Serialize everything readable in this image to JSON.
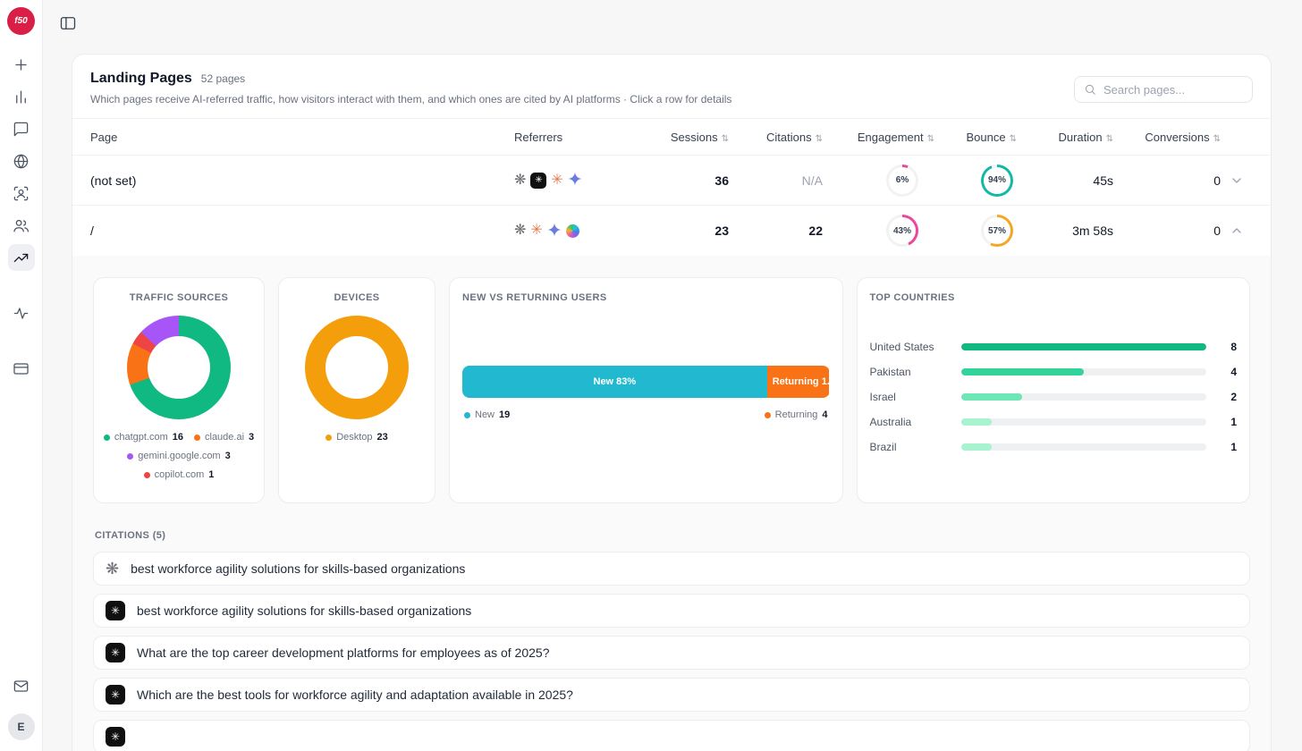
{
  "sidebar": {
    "logo_text": "f50",
    "avatar_text": "E"
  },
  "header": {
    "title": "Landing Pages",
    "badge": "52 pages",
    "subtitle": "Which pages receive AI-referred traffic, how visitors interact with them, and which ones are cited by AI platforms · Click a row for details",
    "search_placeholder": "Search pages..."
  },
  "table": {
    "columns": [
      "Page",
      "Referrers",
      "Sessions",
      "Citations",
      "Engagement",
      "Bounce",
      "Duration",
      "Conversions"
    ],
    "rows": [
      {
        "page": "(not set)",
        "referrers": [
          "openai",
          "chatgpt",
          "claude",
          "gemini"
        ],
        "sessions": "36",
        "citations": "N/A",
        "engagement": {
          "label": "6%",
          "pct": 6,
          "color": "#ec4899"
        },
        "bounce": {
          "label": "94%",
          "pct": 94,
          "color": "#14b8a6"
        },
        "duration": "45s",
        "conversions": "0"
      },
      {
        "page": "/",
        "referrers": [
          "openai",
          "claude",
          "gemini",
          "copilot"
        ],
        "sessions": "23",
        "citations": "22",
        "engagement": {
          "label": "43%",
          "pct": 43,
          "color": "#ec4899"
        },
        "bounce": {
          "label": "57%",
          "pct": 57,
          "color": "#f5a623"
        },
        "duration": "3m 58s",
        "conversions": "0"
      }
    ]
  },
  "expanded": {
    "traffic_sources": {
      "title": "TRAFFIC SOURCES",
      "chart": {
        "type": "pie",
        "slices": [
          {
            "label": "chatgpt.com",
            "value": 16,
            "color": "#10b981"
          },
          {
            "label": "claude.ai",
            "value": 3,
            "color": "#f97316"
          },
          {
            "label": "copilot.com",
            "value": 1,
            "color": "#ef4444"
          },
          {
            "label": "gemini.google.com",
            "value": 3,
            "color": "#a855f7"
          }
        ]
      }
    },
    "devices": {
      "title": "DEVICES",
      "chart": {
        "type": "pie",
        "slices": [
          {
            "label": "Desktop",
            "value": 23,
            "color": "#f59e0b"
          }
        ]
      }
    },
    "new_vs_returning": {
      "title": "NEW VS RETURNING USERS",
      "bar": {
        "type": "stacked-bar",
        "new_label": "New 83%",
        "returning_label": "Returning 1...",
        "new_pct": 83,
        "returning_pct": 17,
        "new_color": "#22b8cf",
        "returning_color": "#f97316"
      },
      "legend": [
        {
          "label": "New",
          "value": "19",
          "color": "#22b8cf"
        },
        {
          "label": "Returning",
          "value": "4",
          "color": "#f97316"
        }
      ]
    },
    "top_countries": {
      "title": "TOP COUNTRIES",
      "chart": {
        "type": "bar",
        "items": [
          {
            "label": "United States",
            "value": 8,
            "color": "#10b981"
          },
          {
            "label": "Pakistan",
            "value": 4,
            "color": "#34d399"
          },
          {
            "label": "Israel",
            "value": 2,
            "color": "#6ee7b7"
          },
          {
            "label": "Australia",
            "value": 1,
            "color": "#a7f3d0"
          },
          {
            "label": "Brazil",
            "value": 1,
            "color": "#a7f3d0"
          }
        ]
      }
    },
    "citations": {
      "title": "CITATIONS (5)",
      "items": [
        {
          "icon": "openai",
          "text": "best workforce agility solutions for skills-based organizations"
        },
        {
          "icon": "chatgpt",
          "text": "best workforce agility solutions for skills-based organizations"
        },
        {
          "icon": "chatgpt",
          "text": "What are the top career development platforms for employees as of 2025?"
        },
        {
          "icon": "chatgpt",
          "text": "Which are the best tools for workforce agility and adaptation available in 2025?"
        },
        {
          "icon": "chatgpt",
          "text": ""
        }
      ]
    }
  }
}
